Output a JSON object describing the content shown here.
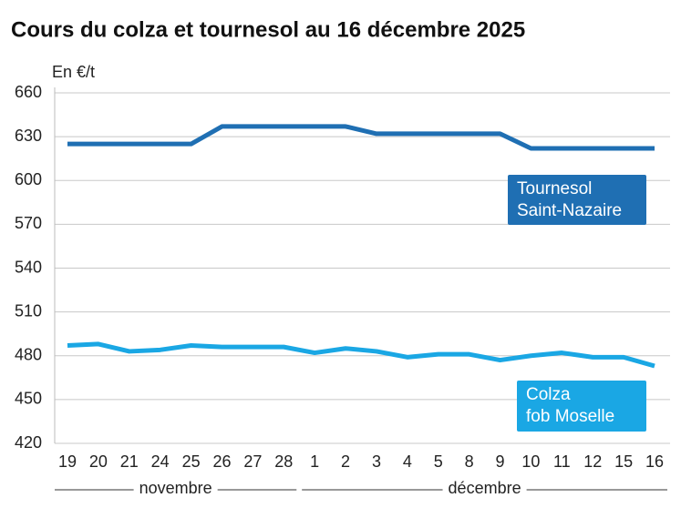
{
  "chart_data": {
    "type": "line",
    "title": "Cours du colza et tournesol au 16 décembre 2025",
    "y_label": "En €/t",
    "categories": [
      "19",
      "20",
      "21",
      "24",
      "25",
      "26",
      "27",
      "28",
      "1",
      "2",
      "3",
      "4",
      "5",
      "8",
      "9",
      "10",
      "11",
      "12",
      "15",
      "16"
    ],
    "month_labels": [
      "novembre",
      "décembre"
    ],
    "series": [
      {
        "name": [
          "Tournesol",
          "Saint-Nazaire"
        ],
        "color": "#1f6fb3",
        "values": [
          625,
          625,
          625,
          625,
          625,
          637,
          637,
          637,
          637,
          637,
          632,
          632,
          632,
          632,
          632,
          622,
          622,
          622,
          622,
          622
        ]
      },
      {
        "name": [
          "Colza",
          "fob Moselle"
        ],
        "color": "#1aa7e4",
        "values": [
          487,
          488,
          483,
          484,
          487,
          486,
          486,
          486,
          482,
          485,
          483,
          479,
          481,
          481,
          477,
          480,
          482,
          479,
          479,
          473
        ]
      }
    ],
    "ylim": [
      420,
      660
    ],
    "yticks": [
      420,
      450,
      480,
      510,
      540,
      570,
      600,
      630,
      660
    ],
    "grid": true
  }
}
